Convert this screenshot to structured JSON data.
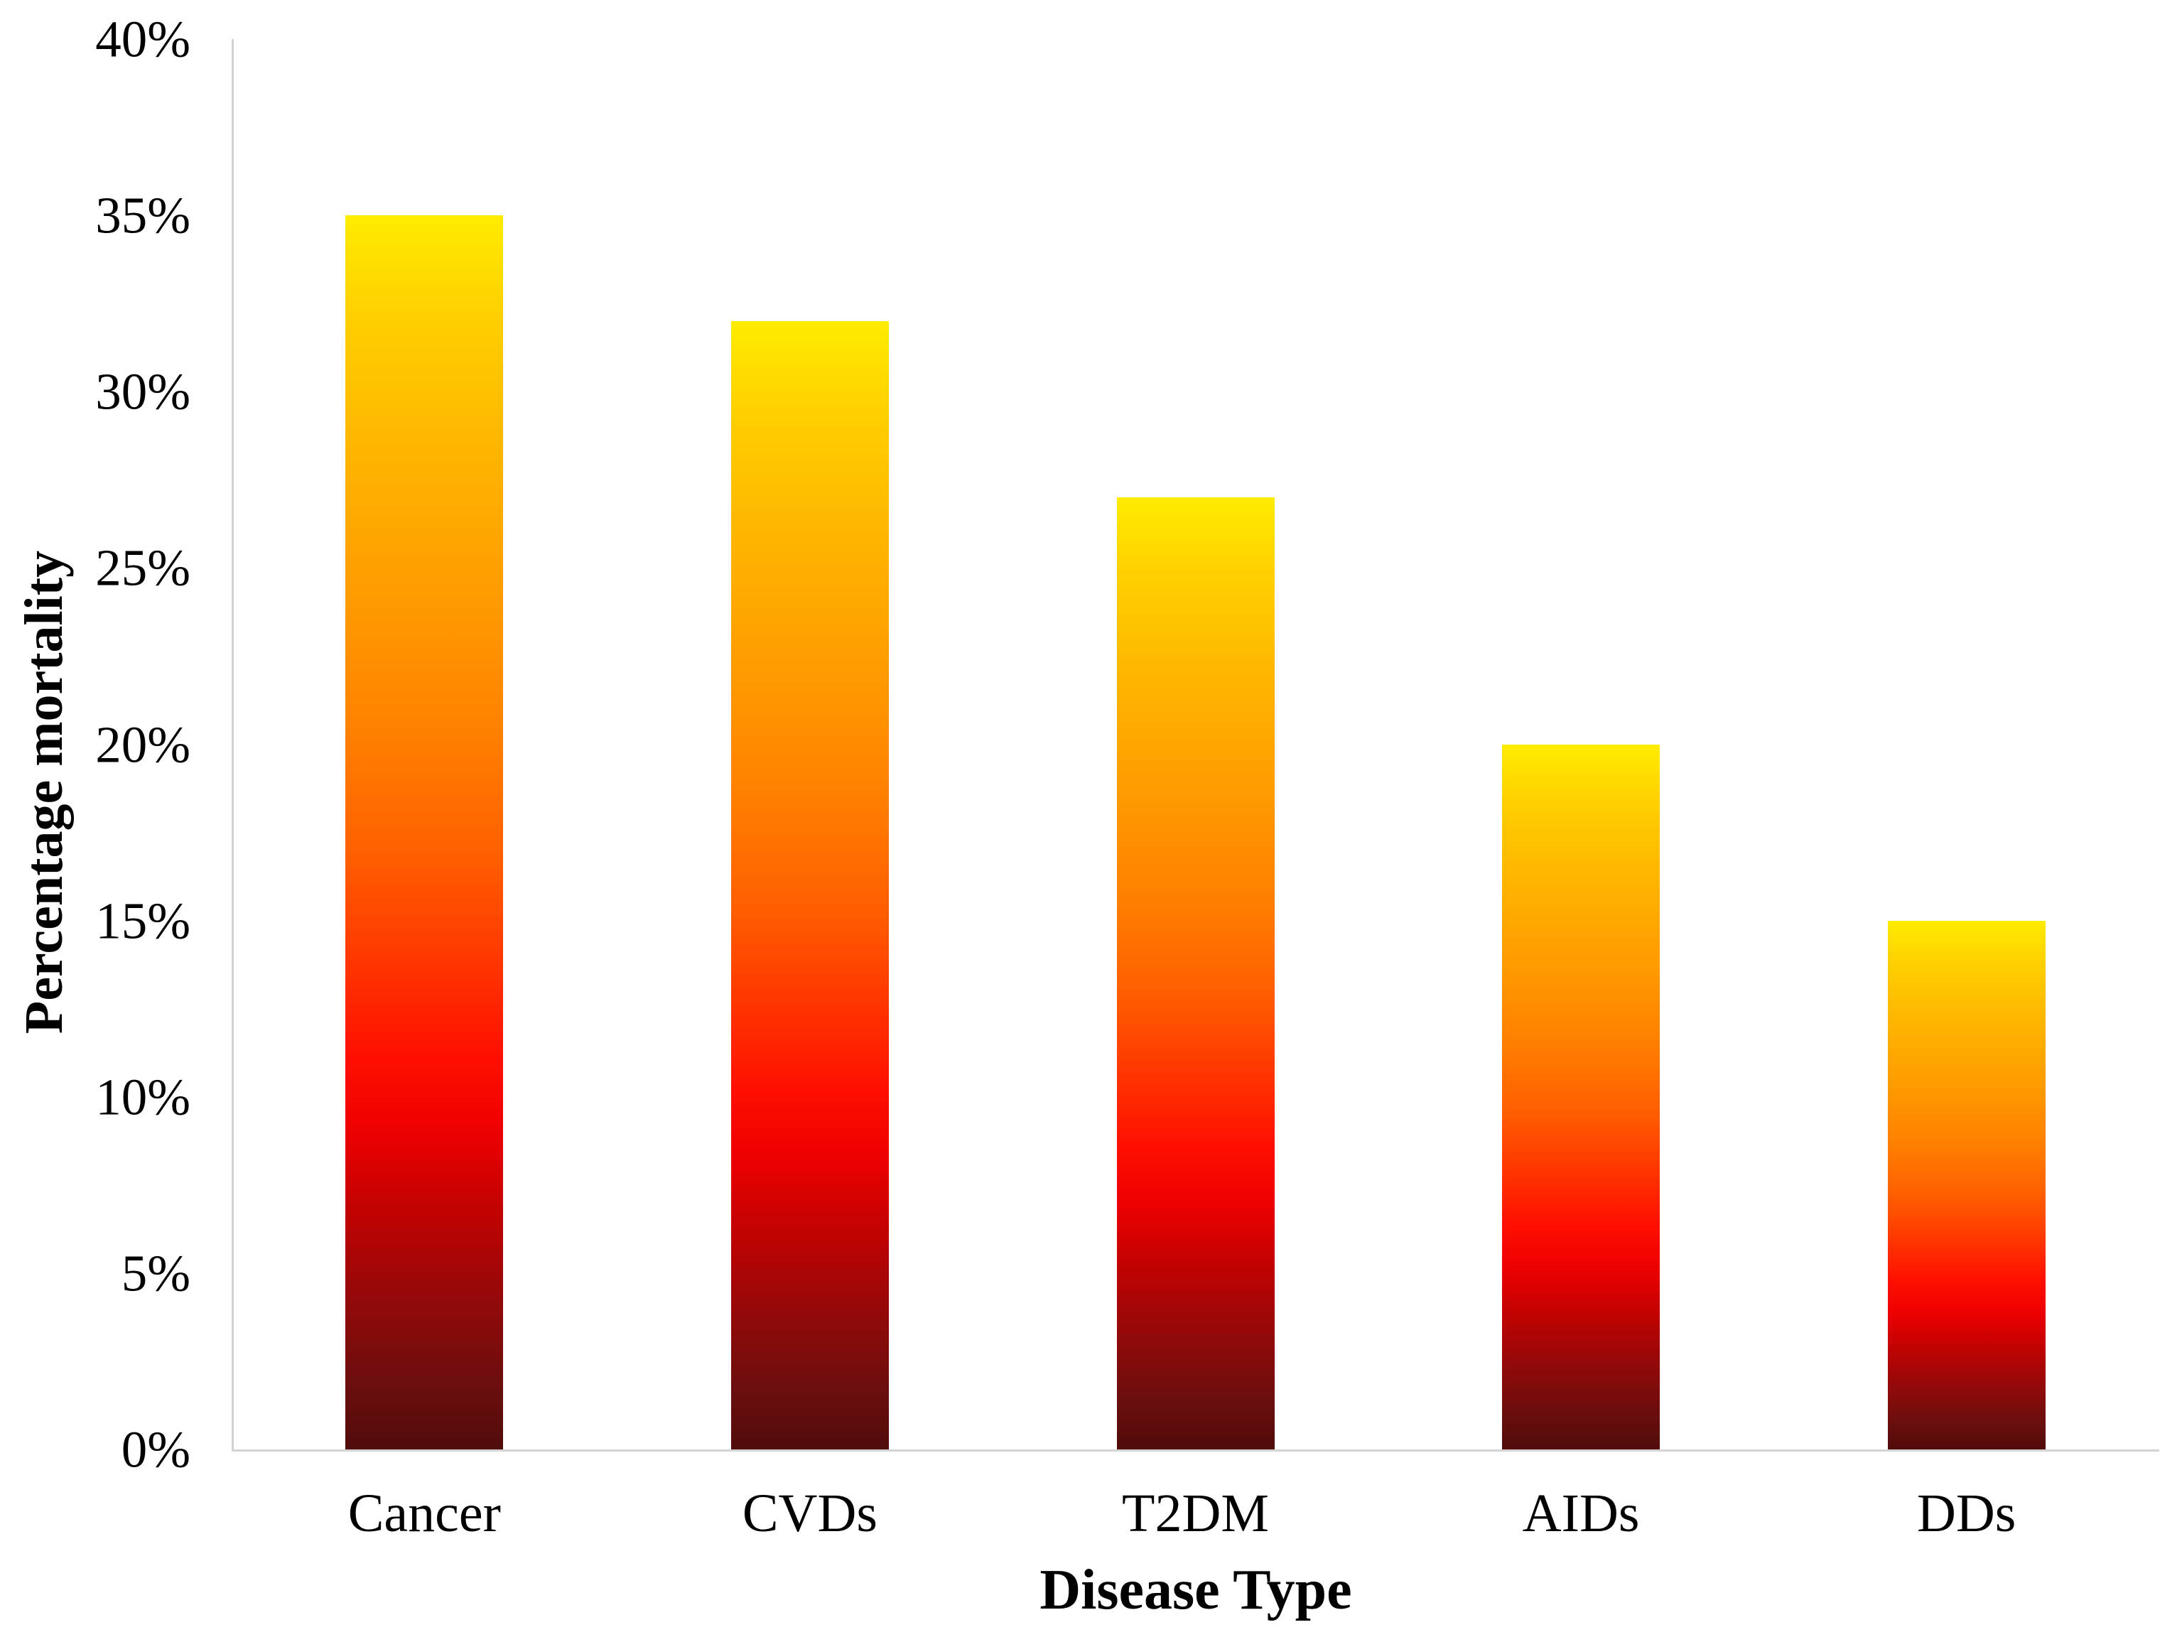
{
  "chart_data": {
    "type": "bar",
    "title": "",
    "categories": [
      "Cancer",
      "CVDs",
      "T2DM",
      "AIDs",
      "DDs"
    ],
    "values": [
      35,
      32,
      27,
      20,
      15
    ],
    "xlabel": "Disease Type",
    "ylabel": "Percentage mortality",
    "ylim": [
      0,
      40
    ],
    "ytick_step": 5,
    "yticks": [
      "0%",
      "5%",
      "10%",
      "15%",
      "20%",
      "25%",
      "30%",
      "35%",
      "40%"
    ],
    "grid": false,
    "legend_position": "none",
    "colors": {
      "bar_gradient_top": "#ffec00",
      "bar_gradient_mid_orange": "#ff9900",
      "bar_gradient_red": "#ff1000",
      "bar_gradient_bottom": "#500c0a",
      "axis_line": "#d3d3d3",
      "text": "#000000",
      "background": "#ffffff"
    }
  }
}
